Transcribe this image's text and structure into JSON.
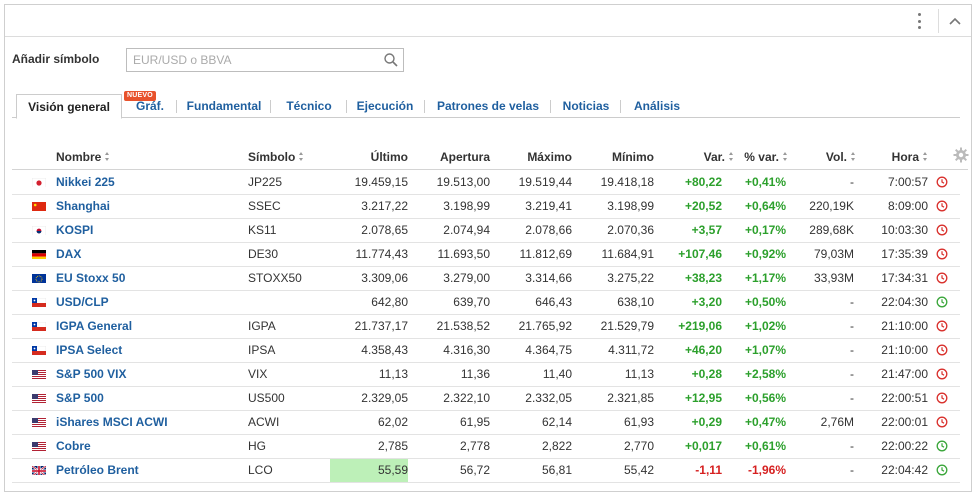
{
  "add_symbol": {
    "label": "Añadir símbolo",
    "placeholder": "EUR/USD o BBVA"
  },
  "tabs": [
    {
      "label": "Visión general"
    },
    {
      "label": "Gráf.",
      "badge": "NUEVO"
    },
    {
      "label": "Fundamental"
    },
    {
      "label": "Técnico"
    },
    {
      "label": "Ejecución"
    },
    {
      "label": "Patrones de velas"
    },
    {
      "label": "Noticias"
    },
    {
      "label": "Análisis"
    }
  ],
  "columns": {
    "name": "Nombre",
    "symbol": "Símbolo",
    "last": "Último",
    "open": "Apertura",
    "high": "Máximo",
    "low": "Mínimo",
    "change": "Var.",
    "pct_change": "% var.",
    "volume": "Vol.",
    "time": "Hora"
  },
  "rows": [
    {
      "flag": "japan",
      "name": "Nikkei 225",
      "symbol": "JP225",
      "last": "19.459,15",
      "open": "19.513,00",
      "high": "19.519,44",
      "low": "19.418,18",
      "change": "+80,22",
      "pct": "+0,41%",
      "vol": "-",
      "time": "7:00:57",
      "dir": "up",
      "status": "closed"
    },
    {
      "flag": "china",
      "name": "Shanghai",
      "symbol": "SSEC",
      "last": "3.217,22",
      "open": "3.198,99",
      "high": "3.219,41",
      "low": "3.198,99",
      "change": "+20,52",
      "pct": "+0,64%",
      "vol": "220,19K",
      "time": "8:09:00",
      "dir": "up",
      "status": "closed"
    },
    {
      "flag": "korea",
      "name": "KOSPI",
      "symbol": "KS11",
      "last": "2.078,65",
      "open": "2.074,94",
      "high": "2.078,66",
      "low": "2.070,36",
      "change": "+3,57",
      "pct": "+0,17%",
      "vol": "289,68K",
      "time": "10:03:30",
      "dir": "up",
      "status": "closed"
    },
    {
      "flag": "germany",
      "name": "DAX",
      "symbol": "DE30",
      "last": "11.774,43",
      "open": "11.693,50",
      "high": "11.812,69",
      "low": "11.684,91",
      "change": "+107,46",
      "pct": "+0,92%",
      "vol": "79,03M",
      "time": "17:35:39",
      "dir": "up",
      "status": "closed"
    },
    {
      "flag": "eu",
      "name": "EU Stoxx 50",
      "symbol": "STOXX50",
      "last": "3.309,06",
      "open": "3.279,00",
      "high": "3.314,66",
      "low": "3.275,22",
      "change": "+38,23",
      "pct": "+1,17%",
      "vol": "33,93M",
      "time": "17:34:31",
      "dir": "up",
      "status": "closed"
    },
    {
      "flag": "chile",
      "name": "USD/CLP",
      "symbol": "",
      "last": "642,80",
      "open": "639,70",
      "high": "646,43",
      "low": "638,10",
      "change": "+3,20",
      "pct": "+0,50%",
      "vol": "-",
      "time": "22:04:30",
      "dir": "up",
      "status": "open"
    },
    {
      "flag": "chile",
      "name": "IGPA General",
      "symbol": "IGPA",
      "last": "21.737,17",
      "open": "21.538,52",
      "high": "21.765,92",
      "low": "21.529,79",
      "change": "+219,06",
      "pct": "+1,02%",
      "vol": "-",
      "time": "21:10:00",
      "dir": "up",
      "status": "closed"
    },
    {
      "flag": "chile",
      "name": "IPSA Select",
      "symbol": "IPSA",
      "last": "4.358,43",
      "open": "4.316,30",
      "high": "4.364,75",
      "low": "4.311,72",
      "change": "+46,20",
      "pct": "+1,07%",
      "vol": "-",
      "time": "21:10:00",
      "dir": "up",
      "status": "closed"
    },
    {
      "flag": "usa",
      "name": "S&P 500 VIX",
      "symbol": "VIX",
      "last": "11,13",
      "open": "11,36",
      "high": "11,40",
      "low": "11,13",
      "change": "+0,28",
      "pct": "+2,58%",
      "vol": "-",
      "time": "21:47:00",
      "dir": "up",
      "status": "closed"
    },
    {
      "flag": "usa",
      "name": "S&P 500",
      "symbol": "US500",
      "last": "2.329,05",
      "open": "2.322,10",
      "high": "2.332,05",
      "low": "2.321,85",
      "change": "+12,95",
      "pct": "+0,56%",
      "vol": "-",
      "time": "22:00:51",
      "dir": "up",
      "status": "closed"
    },
    {
      "flag": "usa",
      "name": "iShares MSCI ACWI",
      "symbol": "ACWI",
      "last": "62,02",
      "open": "61,95",
      "high": "62,14",
      "low": "61,93",
      "change": "+0,29",
      "pct": "+0,47%",
      "vol": "2,76M",
      "time": "22:00:01",
      "dir": "up",
      "status": "closed"
    },
    {
      "flag": "usa",
      "name": "Cobre",
      "symbol": "HG",
      "last": "2,785",
      "open": "2,778",
      "high": "2,822",
      "low": "2,770",
      "change": "+0,017",
      "pct": "+0,61%",
      "vol": "-",
      "time": "22:00:22",
      "dir": "up",
      "status": "open"
    },
    {
      "flag": "uk",
      "name": "Petróleo Brent",
      "symbol": "LCO",
      "last": "55,59",
      "open": "56,72",
      "high": "56,81",
      "low": "55,42",
      "change": "-1,11",
      "pct": "-1,96%",
      "vol": "-",
      "time": "22:04:42",
      "dir": "down",
      "status": "open",
      "last_highlight": true
    }
  ],
  "colors": {
    "link": "#1f5f9f",
    "up": "#2ca02c",
    "down": "#d62020",
    "closed_clock": "#d9302c",
    "open_clock": "#3aa63a",
    "highlight": "#bdf0b8"
  }
}
